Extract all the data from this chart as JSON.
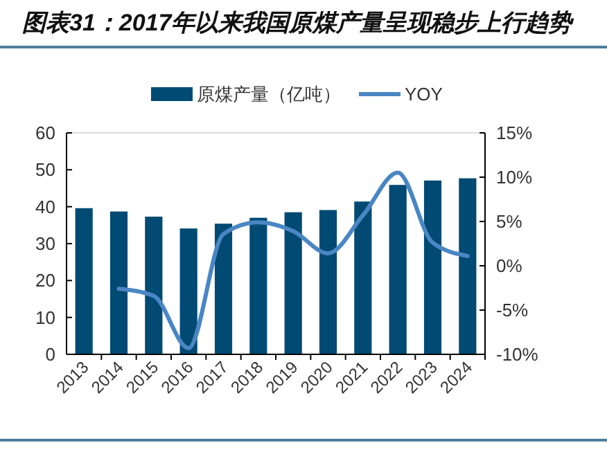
{
  "chart_data": {
    "type": "bar",
    "title": "图表31：2017年以来我国原煤产量呈现稳步上行趋势",
    "categories": [
      "2013",
      "2014",
      "2015",
      "2016",
      "2017",
      "2018",
      "2019",
      "2020",
      "2021",
      "2022",
      "2023",
      "2024"
    ],
    "series": [
      {
        "name": "原煤产量（亿吨）",
        "color": "#004a73",
        "values": [
          39.6,
          38.7,
          37.3,
          34.1,
          35.4,
          37,
          38.5,
          39.1,
          41.4,
          45.9,
          47.1,
          47.7
        ]
      },
      {
        "name": "YOY",
        "type": "line",
        "axis": "y2",
        "color": "#4a86c4",
        "values": [
          null,
          -2.6,
          -3.4,
          -9.3,
          3.6,
          4.9,
          3.9,
          1.4,
          5.7,
          10.5,
          2.6,
          1.1
        ]
      }
    ],
    "ylim": [
      0,
      60
    ],
    "yticks": [
      0,
      10,
      20,
      30,
      40,
      50,
      60
    ],
    "y2lim": [
      -10,
      15
    ],
    "y2ticks": [
      {
        "value": -10,
        "label": "-10%"
      },
      {
        "value": -5,
        "label": "-5%"
      },
      {
        "value": 0,
        "label": "0%"
      },
      {
        "value": 5,
        "label": "5%"
      },
      {
        "value": 10,
        "label": "10%"
      },
      {
        "value": 15,
        "label": "15%"
      }
    ],
    "grid": false,
    "legend": "top"
  }
}
